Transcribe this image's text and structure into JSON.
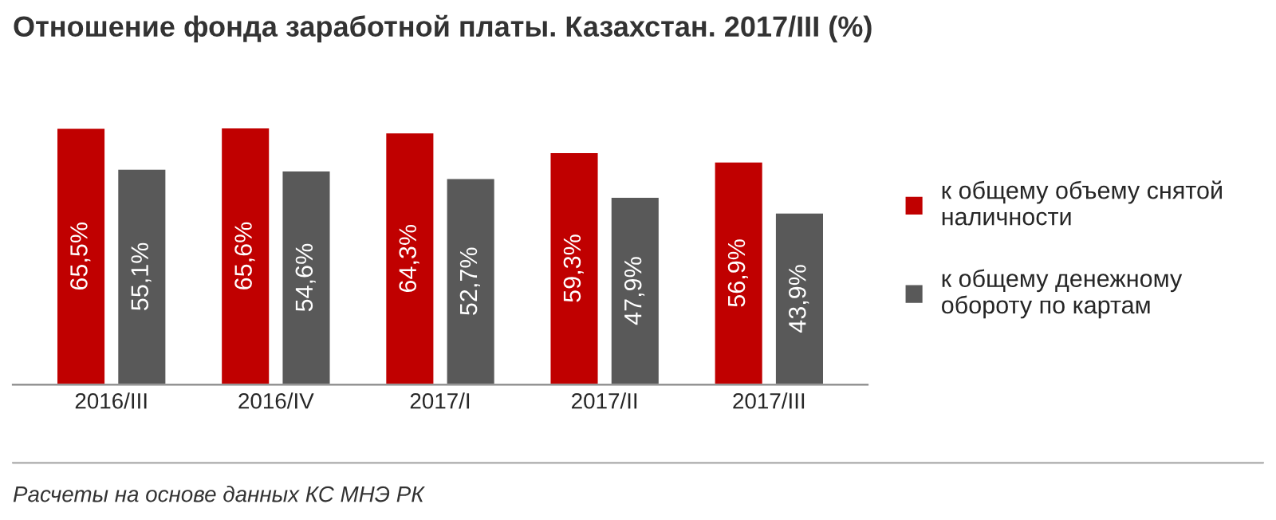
{
  "chart_data": {
    "type": "bar",
    "title": "Отношение фонда заработной платы. Казахстан. 2017/III (%)",
    "categories": [
      "2016/III",
      "2016/IV",
      "2017/I",
      "2017/II",
      "2017/III"
    ],
    "series": [
      {
        "name": "к общему объему снятой\nналичности",
        "color": "#c00000",
        "values": [
          65.5,
          65.6,
          64.3,
          59.3,
          56.9
        ],
        "value_labels": [
          "65,5%",
          "65,6%",
          "64,3%",
          "59,3%",
          "56,9%"
        ]
      },
      {
        "name": "к общему денежному\nобороту по картам",
        "color": "#595959",
        "values": [
          55.1,
          54.6,
          52.7,
          47.9,
          43.9
        ],
        "value_labels": [
          "55,1%",
          "54,6%",
          "52,7%",
          "47,9%",
          "43,9%"
        ]
      }
    ],
    "annotations": [
      "Расчеты на основе данных КС МНЭ РК"
    ],
    "legend": "right",
    "tick_labels": "x",
    "grid": false
  }
}
